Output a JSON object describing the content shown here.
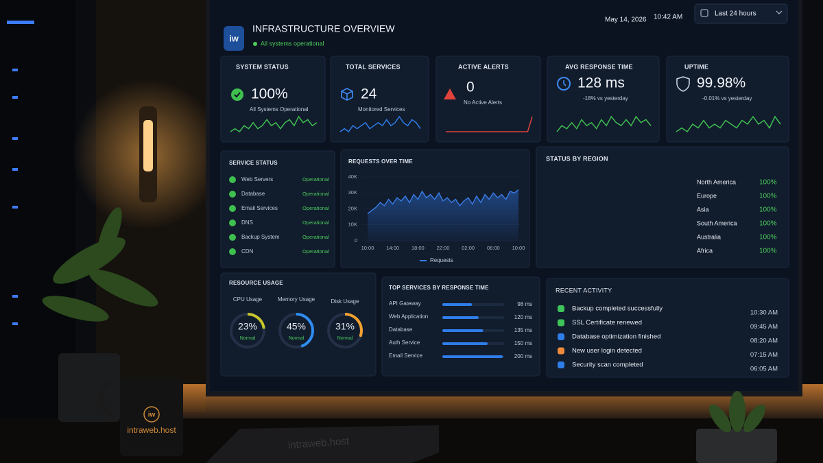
{
  "header": {
    "logo": "iw",
    "title": "INFRASTRUCTURE OVERVIEW",
    "status": "All systems operational",
    "date": "May 14, 2026",
    "time": "10:42 AM",
    "range": "Last 24 hours"
  },
  "cards": [
    {
      "title": "SYSTEM STATUS",
      "value": "100%",
      "caption": "All Systems Operational",
      "color": "#3fbf4f",
      "sparkline": [
        3,
        4,
        3,
        5,
        4,
        6,
        4,
        5,
        7,
        5,
        6,
        4,
        6,
        7,
        5,
        8,
        6,
        7,
        5,
        6
      ]
    },
    {
      "title": "TOTAL SERVICES",
      "value": "24",
      "caption": "Monitored Services",
      "color": "#2f7de8",
      "sparkline": [
        3,
        4,
        3,
        5,
        4,
        5,
        6,
        4,
        5,
        6,
        5,
        7,
        5,
        6,
        8,
        6,
        5,
        7,
        6,
        4
      ]
    },
    {
      "title": "ACTIVE ALERTS",
      "value": "0",
      "caption": "No Active Alerts",
      "color": "#e0433c",
      "sparkline": [
        3,
        3,
        3,
        3,
        3,
        3,
        3,
        3,
        3,
        3,
        3,
        3,
        3,
        3,
        3,
        3,
        3,
        3,
        3,
        4
      ]
    },
    {
      "title": "AVG RESPONSE TIME",
      "value": "128 ms",
      "caption": "-18% vs yesterday",
      "color": "#3fbf4f",
      "sparkline": [
        3,
        5,
        4,
        6,
        4,
        7,
        5,
        6,
        4,
        7,
        5,
        8,
        6,
        5,
        7,
        5,
        8,
        6,
        7,
        5
      ]
    },
    {
      "title": "UPTIME",
      "value": "99.98%",
      "caption": "-0.01% vs yesterday",
      "color": "#3fbf4f",
      "sparkline": [
        4,
        5,
        4,
        6,
        5,
        7,
        5,
        6,
        5,
        7,
        6,
        5,
        7,
        6,
        8,
        6,
        7,
        5,
        8,
        6
      ]
    }
  ],
  "service_status": {
    "title": "SERVICE STATUS",
    "services": [
      {
        "name": "Web Servers",
        "status": "Operational"
      },
      {
        "name": "Database",
        "status": "Operational"
      },
      {
        "name": "Email Services",
        "status": "Operational"
      },
      {
        "name": "DNS",
        "status": "Operational"
      },
      {
        "name": "Backup System",
        "status": "Operational"
      },
      {
        "name": "CDN",
        "status": "Operational"
      }
    ]
  },
  "requests_chart": {
    "type": "line",
    "title": "REQUESTS OVER TIME",
    "categories": [
      "10:00",
      null,
      null,
      null,
      null,
      null,
      "14:00",
      null,
      null,
      null,
      null,
      null,
      "18:00",
      null,
      null,
      null,
      null,
      null,
      "22:00",
      null,
      null,
      null,
      null,
      null,
      "02:00",
      null,
      null,
      null,
      null,
      null,
      "06:00",
      null,
      null,
      null,
      null,
      null,
      "10:00"
    ],
    "series": [
      {
        "name": "Requests",
        "color": "#3b7de9",
        "values": [
          17000,
          19000,
          21000,
          24000,
          22000,
          26000,
          23000,
          27000,
          25000,
          28000,
          24000,
          29000,
          26000,
          31000,
          27000,
          29000,
          26000,
          30000,
          25000,
          27000,
          24000,
          26000,
          22000,
          25000,
          27000,
          23000,
          28000,
          24000,
          29000,
          26000,
          30000,
          27000,
          29000,
          26000,
          31000,
          30000,
          32000
        ]
      }
    ],
    "ylim": [
      0,
      40000
    ],
    "yticks": [
      0,
      {
        "value": 10000,
        "label": "10K"
      },
      {
        "value": 20000,
        "label": "20K"
      },
      {
        "value": 30000,
        "label": "30K"
      },
      {
        "value": 40000,
        "label": "40K"
      }
    ]
  },
  "region": {
    "title": "STATUS BY REGION",
    "regions": [
      {
        "name": "North America",
        "value": "100%"
      },
      {
        "name": "Europe",
        "value": "100%"
      },
      {
        "name": "Asia",
        "value": "100%"
      },
      {
        "name": "South America",
        "value": "100%"
      },
      {
        "name": "Australia",
        "value": "100%"
      },
      {
        "name": "Africa",
        "value": "100%"
      }
    ]
  },
  "resources": {
    "title": "RESOURCE USAGE",
    "gauges": [
      {
        "name": "CPU Usage",
        "value": 23,
        "label": "23%",
        "status": "Normal",
        "color": "#c8c62c"
      },
      {
        "name": "Memory Usage",
        "value": 45,
        "label": "45%",
        "status": "Normal",
        "color": "#2f8cf0"
      },
      {
        "name": "Disk Usage",
        "value": 31,
        "label": "31%",
        "status": "Normal",
        "color": "#f0a030"
      }
    ]
  },
  "top_services": {
    "title": "TOP SERVICES BY RESPONSE TIME",
    "items": [
      {
        "name": "API Gateway",
        "value": 98,
        "label": "98 ms"
      },
      {
        "name": "Web Application",
        "value": 120,
        "label": "120 ms"
      },
      {
        "name": "Database",
        "value": 135,
        "label": "135 ms"
      },
      {
        "name": "Auth Service",
        "value": 150,
        "label": "150 ms"
      },
      {
        "name": "Email Service",
        "value": 200,
        "label": "200 ms"
      }
    ]
  },
  "activity": {
    "title": "RECENT ACTIVITY",
    "items": [
      {
        "text": "Backup completed successfully",
        "time": "10:30 AM",
        "color": "#3ec45a"
      },
      {
        "text": "SSL Certificate renewed",
        "time": "09:45 AM",
        "color": "#3ec45a"
      },
      {
        "text": "Database optimization finished",
        "time": "08:20 AM",
        "color": "#2f7de8"
      },
      {
        "text": "New user login detected",
        "time": "07:15 AM",
        "color": "#f08a3a"
      },
      {
        "text": "Security scan completed",
        "time": "06:05 AM",
        "color": "#2f7de8"
      }
    ]
  },
  "scene": {
    "mug_logo": "iw",
    "mug_text": "intraweb.host",
    "notebook_text": "intraweb.host"
  }
}
